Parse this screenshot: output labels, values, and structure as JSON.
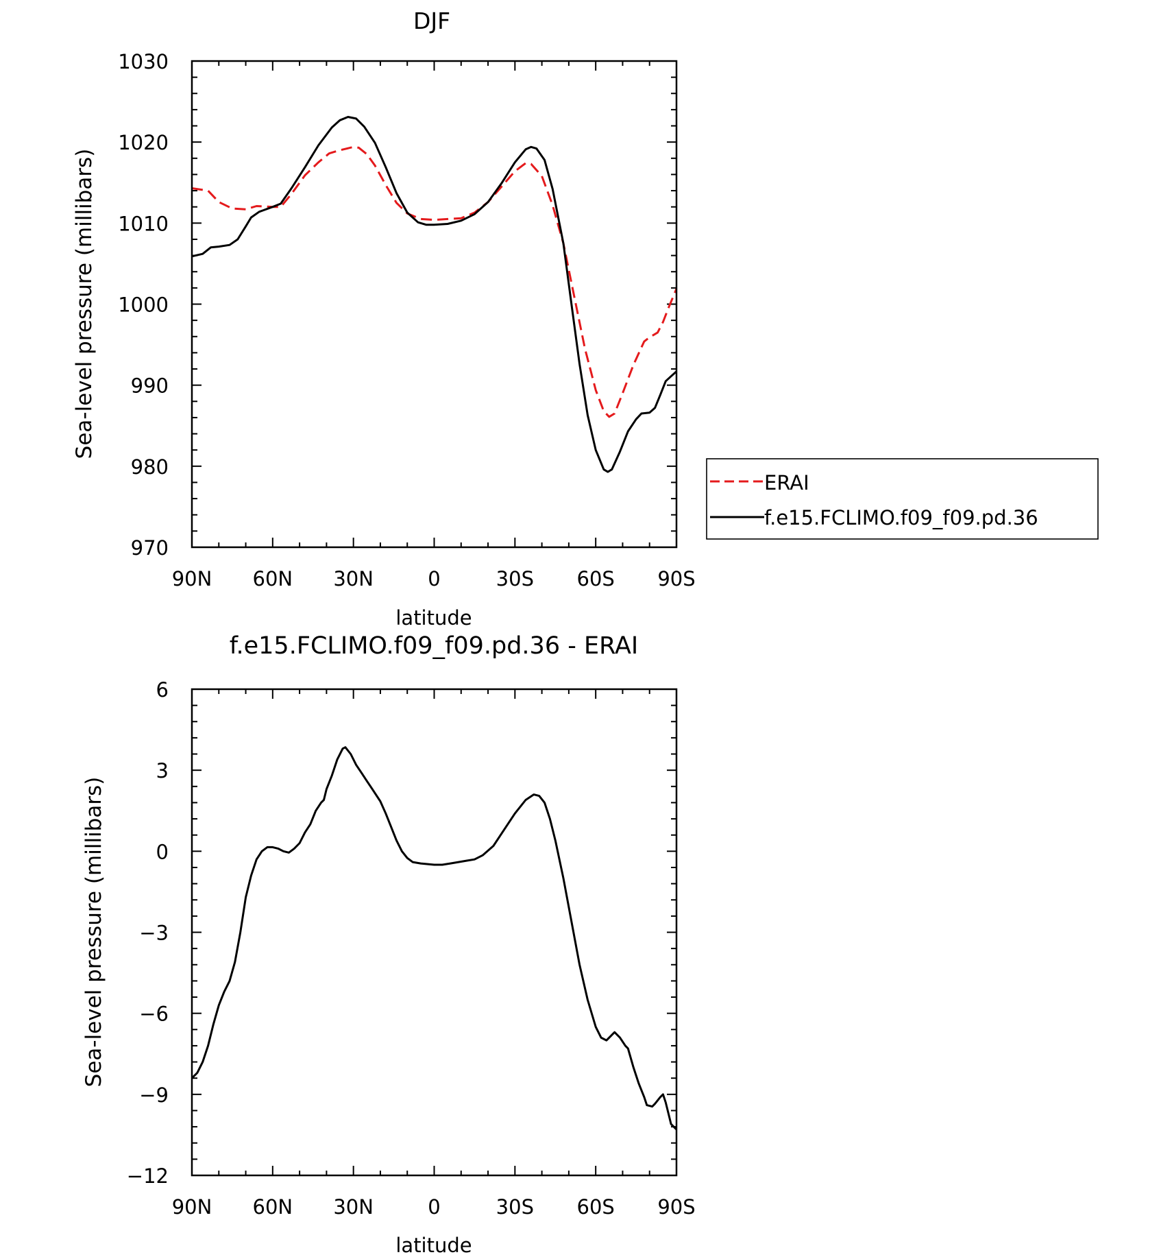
{
  "chart_data": [
    {
      "type": "line",
      "title": "DJF",
      "xlabel": "latitude",
      "ylabel": "Sea-level pressure (millibars)",
      "xlim": [
        -90,
        90
      ],
      "ylim": [
        970,
        1030
      ],
      "x_ticks": [
        {
          "value": -90,
          "label": "90N"
        },
        {
          "value": -60,
          "label": "60N"
        },
        {
          "value": -30,
          "label": "30N"
        },
        {
          "value": 0,
          "label": "0"
        },
        {
          "value": 30,
          "label": "30S"
        },
        {
          "value": 60,
          "label": "60S"
        },
        {
          "value": 90,
          "label": "90S"
        }
      ],
      "y_ticks": [
        {
          "value": 970,
          "label": "970"
        },
        {
          "value": 980,
          "label": "980"
        },
        {
          "value": 990,
          "label": "990"
        },
        {
          "value": 1000,
          "label": "1000"
        },
        {
          "value": 1010,
          "label": "1010"
        },
        {
          "value": 1020,
          "label": "1020"
        },
        {
          "value": 1030,
          "label": "1030"
        }
      ],
      "grid": false,
      "legend": "right",
      "series": [
        {
          "name": "ERAI",
          "color": "#e41a1c",
          "dash": true,
          "points": [
            [
              -90,
              1014.3
            ],
            [
              -84,
              1014
            ],
            [
              -80,
              1012.6
            ],
            [
              -75,
              1011.8
            ],
            [
              -70,
              1011.7
            ],
            [
              -66,
              1012.1
            ],
            [
              -60,
              1012
            ],
            [
              -57,
              1012
            ],
            [
              -53,
              1013.6
            ],
            [
              -48,
              1015.9
            ],
            [
              -43,
              1017.5
            ],
            [
              -39,
              1018.6
            ],
            [
              -35,
              1019
            ],
            [
              -30,
              1019.4
            ],
            [
              -28,
              1019.3
            ],
            [
              -25,
              1018.5
            ],
            [
              -22,
              1017.1
            ],
            [
              -18,
              1014.7
            ],
            [
              -14,
              1012.5
            ],
            [
              -10,
              1011.2
            ],
            [
              -5,
              1010.5
            ],
            [
              0,
              1010.4
            ],
            [
              5,
              1010.5
            ],
            [
              10,
              1010.6
            ],
            [
              15,
              1011.3
            ],
            [
              20,
              1012.6
            ],
            [
              25,
              1014.5
            ],
            [
              30,
              1016.4
            ],
            [
              34,
              1017.4
            ],
            [
              36,
              1017.3
            ],
            [
              40,
              1015.8
            ],
            [
              44,
              1012.2
            ],
            [
              48,
              1007.5
            ],
            [
              52,
              1001
            ],
            [
              56,
              994.5
            ],
            [
              60,
              989.4
            ],
            [
              63,
              986.8
            ],
            [
              65,
              986.1
            ],
            [
              67,
              986.5
            ],
            [
              70,
              989
            ],
            [
              74,
              992.5
            ],
            [
              78,
              995.4
            ],
            [
              80,
              995.9
            ],
            [
              83,
              996.5
            ],
            [
              85,
              997.8
            ],
            [
              87,
              999.5
            ],
            [
              90,
              1001.9
            ]
          ]
        },
        {
          "name": "f.e15.FCLIMO.f09_f09.pd.36",
          "color": "#000000",
          "dash": false,
          "points": [
            [
              -90,
              1005.9
            ],
            [
              -86,
              1006.2
            ],
            [
              -83,
              1007
            ],
            [
              -80,
              1007.1
            ],
            [
              -76,
              1007.3
            ],
            [
              -73,
              1008
            ],
            [
              -70,
              1009.6
            ],
            [
              -68,
              1010.7
            ],
            [
              -65,
              1011.4
            ],
            [
              -60,
              1012
            ],
            [
              -57,
              1012.4
            ],
            [
              -53,
              1014.3
            ],
            [
              -48,
              1016.9
            ],
            [
              -43,
              1019.6
            ],
            [
              -38,
              1021.8
            ],
            [
              -35,
              1022.7
            ],
            [
              -32,
              1023.1
            ],
            [
              -29,
              1022.9
            ],
            [
              -26,
              1021.9
            ],
            [
              -22,
              1019.9
            ],
            [
              -18,
              1016.9
            ],
            [
              -14,
              1013.7
            ],
            [
              -10,
              1011.3
            ],
            [
              -6,
              1010.1
            ],
            [
              -3,
              1009.8
            ],
            [
              0,
              1009.8
            ],
            [
              5,
              1009.9
            ],
            [
              10,
              1010.3
            ],
            [
              15,
              1011.1
            ],
            [
              20,
              1012.6
            ],
            [
              25,
              1014.9
            ],
            [
              30,
              1017.5
            ],
            [
              34,
              1019.1
            ],
            [
              36,
              1019.4
            ],
            [
              38,
              1019.2
            ],
            [
              41,
              1017.8
            ],
            [
              44,
              1014.2
            ],
            [
              48,
              1007.5
            ],
            [
              51,
              1000
            ],
            [
              54,
              992.6
            ],
            [
              57,
              986.3
            ],
            [
              60,
              982
            ],
            [
              63,
              979.6
            ],
            [
              64.5,
              979.3
            ],
            [
              66,
              979.6
            ],
            [
              69,
              981.8
            ],
            [
              72,
              984.3
            ],
            [
              75,
              985.8
            ],
            [
              77,
              986.5
            ],
            [
              80,
              986.6
            ],
            [
              82,
              987.2
            ],
            [
              84,
              988.8
            ],
            [
              86,
              990.5
            ],
            [
              88,
              991.1
            ],
            [
              90,
              991.7
            ]
          ]
        }
      ]
    },
    {
      "type": "line",
      "title": "f.e15.FCLIMO.f09_f09.pd.36 - ERAI",
      "xlabel": "latitude",
      "ylabel": "Sea-level pressure (millibars)",
      "xlim": [
        -90,
        90
      ],
      "ylim": [
        -12,
        6
      ],
      "x_ticks": [
        {
          "value": -90,
          "label": "90N"
        },
        {
          "value": -60,
          "label": "60N"
        },
        {
          "value": -30,
          "label": "30N"
        },
        {
          "value": 0,
          "label": "0"
        },
        {
          "value": 30,
          "label": "30S"
        },
        {
          "value": 60,
          "label": "60S"
        },
        {
          "value": 90,
          "label": "90S"
        }
      ],
      "y_ticks": [
        {
          "value": -12,
          "label": "−12"
        },
        {
          "value": -9,
          "label": "−9"
        },
        {
          "value": -6,
          "label": "−6"
        },
        {
          "value": -3,
          "label": "−3"
        },
        {
          "value": 0,
          "label": "0"
        },
        {
          "value": 3,
          "label": "3"
        },
        {
          "value": 6,
          "label": "6"
        }
      ],
      "grid": false,
      "series": [
        {
          "color": "#000000",
          "dash": false,
          "points": [
            [
              -90,
              -8.4
            ],
            [
              -88,
              -8.2
            ],
            [
              -86,
              -7.8
            ],
            [
              -84,
              -7.2
            ],
            [
              -82,
              -6.4
            ],
            [
              -80,
              -5.7
            ],
            [
              -78,
              -5.2
            ],
            [
              -76,
              -4.8
            ],
            [
              -74,
              -4.1
            ],
            [
              -72,
              -3
            ],
            [
              -70,
              -1.7
            ],
            [
              -68,
              -0.9
            ],
            [
              -66,
              -0.3
            ],
            [
              -64,
              0
            ],
            [
              -62,
              0.15
            ],
            [
              -60,
              0.15
            ],
            [
              -58,
              0.1
            ],
            [
              -56,
              0
            ],
            [
              -54,
              -0.05
            ],
            [
              -52,
              0.1
            ],
            [
              -50,
              0.3
            ],
            [
              -48,
              0.7
            ],
            [
              -46,
              1
            ],
            [
              -44,
              1.5
            ],
            [
              -42,
              1.8
            ],
            [
              -41,
              1.9
            ],
            [
              -40,
              2.3
            ],
            [
              -38,
              2.8
            ],
            [
              -36,
              3.4
            ],
            [
              -34,
              3.8
            ],
            [
              -33,
              3.85
            ],
            [
              -31,
              3.6
            ],
            [
              -29,
              3.2
            ],
            [
              -27,
              2.9
            ],
            [
              -25,
              2.6
            ],
            [
              -23,
              2.3
            ],
            [
              -20,
              1.85
            ],
            [
              -18,
              1.4
            ],
            [
              -16,
              0.9
            ],
            [
              -14,
              0.4
            ],
            [
              -12,
              0
            ],
            [
              -10,
              -0.25
            ],
            [
              -8,
              -0.4
            ],
            [
              -5,
              -0.45
            ],
            [
              0,
              -0.5
            ],
            [
              3,
              -0.5
            ],
            [
              6,
              -0.45
            ],
            [
              9,
              -0.4
            ],
            [
              12,
              -0.35
            ],
            [
              15,
              -0.3
            ],
            [
              18,
              -0.15
            ],
            [
              22,
              0.2
            ],
            [
              26,
              0.8
            ],
            [
              30,
              1.4
            ],
            [
              34,
              1.9
            ],
            [
              37,
              2.1
            ],
            [
              39,
              2.05
            ],
            [
              41,
              1.8
            ],
            [
              43,
              1.2
            ],
            [
              45,
              0.4
            ],
            [
              48,
              -1
            ],
            [
              51,
              -2.6
            ],
            [
              54,
              -4.2
            ],
            [
              57,
              -5.5
            ],
            [
              60,
              -6.5
            ],
            [
              62,
              -6.9
            ],
            [
              64,
              -7
            ],
            [
              66,
              -6.8
            ],
            [
              67,
              -6.7
            ],
            [
              69,
              -6.9
            ],
            [
              71,
              -7.2
            ],
            [
              72,
              -7.3
            ],
            [
              74,
              -8
            ],
            [
              76,
              -8.6
            ],
            [
              78,
              -9.1
            ],
            [
              79,
              -9.4
            ],
            [
              81,
              -9.45
            ],
            [
              82,
              -9.35
            ],
            [
              84,
              -9.1
            ],
            [
              85,
              -9
            ],
            [
              86,
              -9.3
            ],
            [
              88,
              -10.1
            ],
            [
              90,
              -10.3
            ]
          ]
        }
      ]
    }
  ]
}
